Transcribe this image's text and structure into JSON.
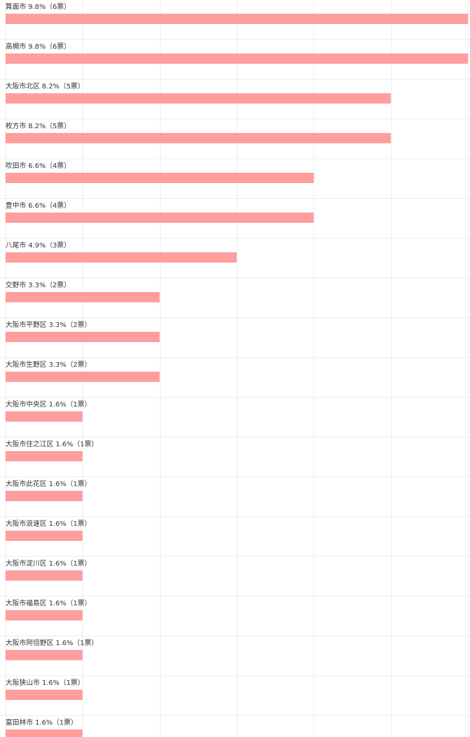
{
  "chart_data": {
    "type": "bar",
    "orientation": "horizontal",
    "xlim": [
      0,
      6
    ],
    "grid": true,
    "bar_color": "#ff9e9e",
    "grid_color": "#eeeeee",
    "label_color": "#333333",
    "categories": [
      "箕面市",
      "高槻市",
      "大阪市北区",
      "枚方市",
      "吹田市",
      "豊中市",
      "八尾市",
      "交野市",
      "大阪市平野区",
      "大阪市生野区",
      "大阪市中央区",
      "大阪市住之江区",
      "大阪市此花区",
      "大阪市浪速区",
      "大阪市淀川区",
      "大阪市福島区",
      "大阪市阿倍野区",
      "大阪狭山市",
      "富田林市"
    ],
    "values": [
      6,
      6,
      5,
      5,
      4,
      4,
      3,
      2,
      2,
      2,
      1,
      1,
      1,
      1,
      1,
      1,
      1,
      1,
      1
    ],
    "percents": [
      "9.8%",
      "9.8%",
      "8.2%",
      "8.2%",
      "6.6%",
      "6.6%",
      "4.9%",
      "3.3%",
      "3.3%",
      "3.3%",
      "1.6%",
      "1.6%",
      "1.6%",
      "1.6%",
      "1.6%",
      "1.6%",
      "1.6%",
      "1.6%",
      "1.6%"
    ],
    "labels": [
      "箕面市 9.8%（6票）",
      "高槻市 9.8%（6票）",
      "大阪市北区 8.2%（5票）",
      "枚方市 8.2%（5票）",
      "吹田市 6.6%（4票）",
      "豊中市 6.6%（4票）",
      "八尾市 4.9%（3票）",
      "交野市 3.3%（2票）",
      "大阪市平野区 3.3%（2票）",
      "大阪市生野区 3.3%（2票）",
      "大阪市中央区 1.6%（1票）",
      "大阪市住之江区 1.6%（1票）",
      "大阪市此花区 1.6%（1票）",
      "大阪市浪速区 1.6%（1票）",
      "大阪市淀川区 1.6%（1票）",
      "大阪市福島区 1.6%（1票）",
      "大阪市阿倍野区 1.6%（1票）",
      "大阪狭山市 1.6%（1票）",
      "富田林市 1.6%（1票）"
    ]
  }
}
